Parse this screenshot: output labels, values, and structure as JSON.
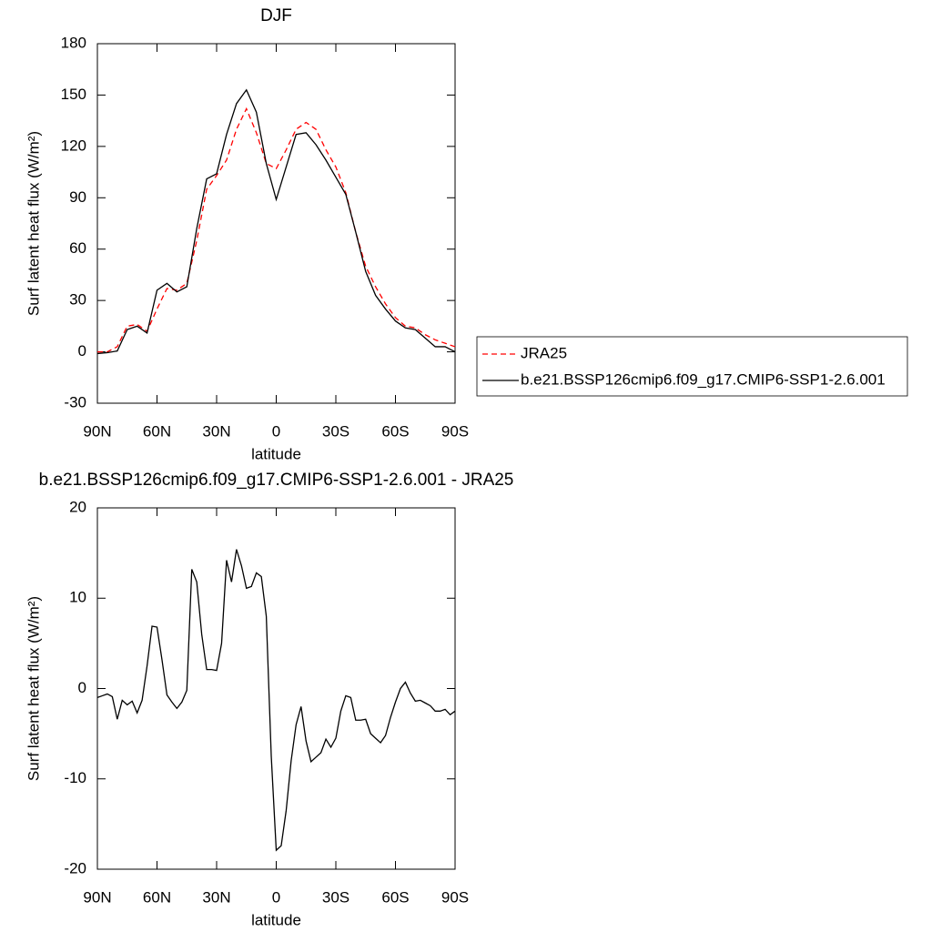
{
  "chart_data": [
    {
      "type": "line",
      "title": "DJF",
      "x_label": "latitude",
      "y_label": "Surf latent heat flux (W/m²)",
      "x": [
        90,
        85,
        80,
        75,
        70,
        65,
        60,
        55,
        50,
        45,
        40,
        35,
        30,
        25,
        20,
        15,
        10,
        5,
        0,
        -5,
        -10,
        -15,
        -20,
        -25,
        -30,
        -35,
        -40,
        -45,
        -50,
        -55,
        -60,
        -65,
        -70,
        -75,
        -80,
        -85,
        -90
      ],
      "series": [
        {
          "name": "JRA25",
          "color": "#ff0000",
          "style": "dashed",
          "values": [
            0,
            0,
            3,
            15,
            16,
            12,
            25,
            37,
            36,
            40,
            65,
            95,
            103,
            112,
            130,
            142,
            128,
            110,
            107,
            118,
            130,
            134,
            130,
            118,
            108,
            93,
            70,
            50,
            38,
            28,
            20,
            15,
            14,
            10,
            7,
            5,
            3
          ]
        },
        {
          "name": "b.e21.BSSP126cmip6.f09_g17.CMIP6-SSP1-2.6.001",
          "color": "#000000",
          "style": "solid",
          "values": [
            -1,
            -0.5,
            0.5,
            13,
            15,
            11,
            36,
            40,
            35,
            38,
            72,
            101,
            104,
            127,
            145,
            153,
            140,
            110,
            89,
            108,
            127,
            128,
            121,
            112,
            102,
            92,
            70,
            47,
            33,
            25,
            18,
            14,
            13,
            8,
            3,
            3,
            0
          ]
        }
      ],
      "xlim": [
        90,
        -90
      ],
      "xticks": [
        {
          "value": 90,
          "label": "90N"
        },
        {
          "value": 60,
          "label": "60N"
        },
        {
          "value": 30,
          "label": "30N"
        },
        0,
        {
          "value": -30,
          "label": "30S"
        },
        {
          "value": -60,
          "label": "60S"
        },
        {
          "value": -90,
          "label": "90S"
        }
      ],
      "ylim": [
        -30,
        180
      ],
      "yticks": [
        -30,
        0,
        30,
        60,
        90,
        120,
        150,
        180
      ],
      "legend": "right"
    },
    {
      "type": "line",
      "title": "b.e21.BSSP126cmip6.f09_g17.CMIP6-SSP1-2.6.001 - JRA25",
      "x_label": "latitude",
      "y_label": "Surf latent heat flux (W/m²)",
      "x": [
        90,
        87.5,
        85,
        82.5,
        80,
        77.5,
        75,
        72.5,
        70,
        67.5,
        65,
        62.5,
        60,
        57.5,
        55,
        52.5,
        50,
        47.5,
        45,
        42.5,
        40,
        37.5,
        35,
        32.5,
        30,
        27.5,
        25,
        22.5,
        20,
        17.5,
        15,
        12.5,
        10,
        7.5,
        5,
        2.5,
        0,
        -2.5,
        -5,
        -7.5,
        -10,
        -12.5,
        -15,
        -17.5,
        -20,
        -22.5,
        -25,
        -27.5,
        -30,
        -32.5,
        -35,
        -37.5,
        -40,
        -42.5,
        -45,
        -47.5,
        -50,
        -52.5,
        -55,
        -57.5,
        -60,
        -62.5,
        -65,
        -67.5,
        -70,
        -72.5,
        -75,
        -77.5,
        -80,
        -82.5,
        -85,
        -87.5,
        -90
      ],
      "values": [
        -1.0,
        -0.8,
        -0.6,
        -0.9,
        -3.4,
        -1.3,
        -1.8,
        -1.4,
        -2.7,
        -1.3,
        2.5,
        6.9,
        6.8,
        3.2,
        -0.7,
        -1.5,
        -2.2,
        -1.5,
        -0.2,
        13.2,
        11.8,
        6.0,
        2.1,
        2.1,
        2.0,
        5.0,
        14.2,
        11.8,
        15.4,
        13.6,
        11.1,
        11.3,
        12.8,
        12.4,
        8.0,
        -7.5,
        -17.9,
        -17.4,
        -13.5,
        -8.0,
        -4.0,
        -2.0,
        -5.8,
        -8.1,
        -7.6,
        -7.1,
        -5.6,
        -6.5,
        -5.5,
        -2.5,
        -0.8,
        -1.0,
        -3.5,
        -3.5,
        -3.4,
        -5.0,
        -5.5,
        -6.0,
        -5.2,
        -3.2,
        -1.5,
        0.0,
        0.7,
        -0.5,
        -1.4,
        -1.3,
        -1.6,
        -1.9,
        -2.5,
        -2.5,
        -2.3,
        -2.9,
        -2.5
      ],
      "color": "#000000",
      "xlim": [
        90,
        -90
      ],
      "xticks": [
        {
          "value": 90,
          "label": "90N"
        },
        {
          "value": 60,
          "label": "60N"
        },
        {
          "value": 30,
          "label": "30N"
        },
        0,
        {
          "value": -30,
          "label": "30S"
        },
        {
          "value": -60,
          "label": "60S"
        },
        {
          "value": -90,
          "label": "90S"
        }
      ],
      "ylim": [
        -20,
        20
      ],
      "yticks": [
        -20,
        -10,
        0,
        10,
        20
      ]
    }
  ]
}
